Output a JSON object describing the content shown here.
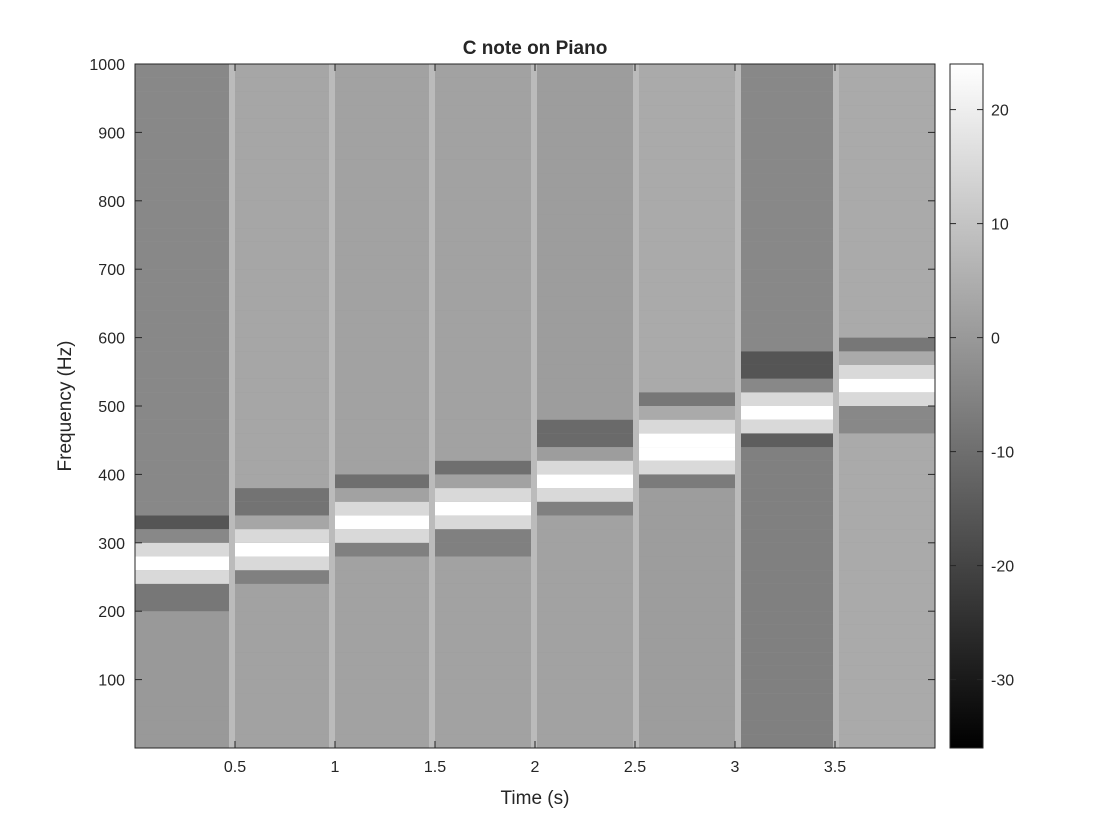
{
  "chart_data": {
    "type": "heatmap",
    "title": "C note on Piano",
    "xlabel": "Time (s)",
    "ylabel": "Frequency (Hz)",
    "xlim": [
      0,
      4.0
    ],
    "ylim": [
      0,
      1000
    ],
    "x_ticks": [
      0.5,
      1,
      1.5,
      2,
      2.5,
      3,
      3.5
    ],
    "x_tick_labels": [
      "0.5",
      "1",
      "1.5",
      "2",
      "2.5",
      "3",
      "3.5"
    ],
    "y_ticks": [
      100,
      200,
      300,
      400,
      500,
      600,
      700,
      800,
      900,
      1000
    ],
    "y_tick_labels": [
      "100",
      "200",
      "300",
      "400",
      "500",
      "600",
      "700",
      "800",
      "900",
      "1000"
    ],
    "colormap": "gray",
    "colorbar": {
      "range": [
        -36,
        24
      ],
      "ticks": [
        20,
        10,
        0,
        -10,
        -20,
        -30
      ],
      "tick_labels": [
        "20",
        "10",
        "0",
        "-10",
        "-20",
        "-30"
      ]
    },
    "segments": [
      {
        "t_start": 0.0,
        "t_end": 0.47,
        "peak_hz": 262,
        "background_db": 0,
        "upper_db": -4,
        "band_db": 24
      },
      {
        "t_start": 0.5,
        "t_end": 0.97,
        "peak_hz": 294,
        "background_db": 2,
        "upper_db": 3,
        "band_db": 24
      },
      {
        "t_start": 1.0,
        "t_end": 1.47,
        "peak_hz": 330,
        "background_db": 2,
        "upper_db": 2,
        "band_db": 24
      },
      {
        "t_start": 1.5,
        "t_end": 1.98,
        "peak_hz": 349,
        "background_db": 2,
        "upper_db": 2,
        "band_db": 24
      },
      {
        "t_start": 2.01,
        "t_end": 2.49,
        "peak_hz": 392,
        "background_db": 2,
        "upper_db": 1,
        "band_db": 24
      },
      {
        "t_start": 2.52,
        "t_end": 3.0,
        "peak_hz": 440,
        "background_db": 1,
        "upper_db": 4,
        "band_db": 24
      },
      {
        "t_start": 3.03,
        "t_end": 3.5,
        "peak_hz": 494,
        "background_db": -6,
        "upper_db": -4,
        "band_db": 24
      },
      {
        "t_start": 3.52,
        "t_end": 4.0,
        "peak_hz": 523,
        "background_db": 4,
        "upper_db": 4,
        "band_db": 24
      }
    ]
  }
}
